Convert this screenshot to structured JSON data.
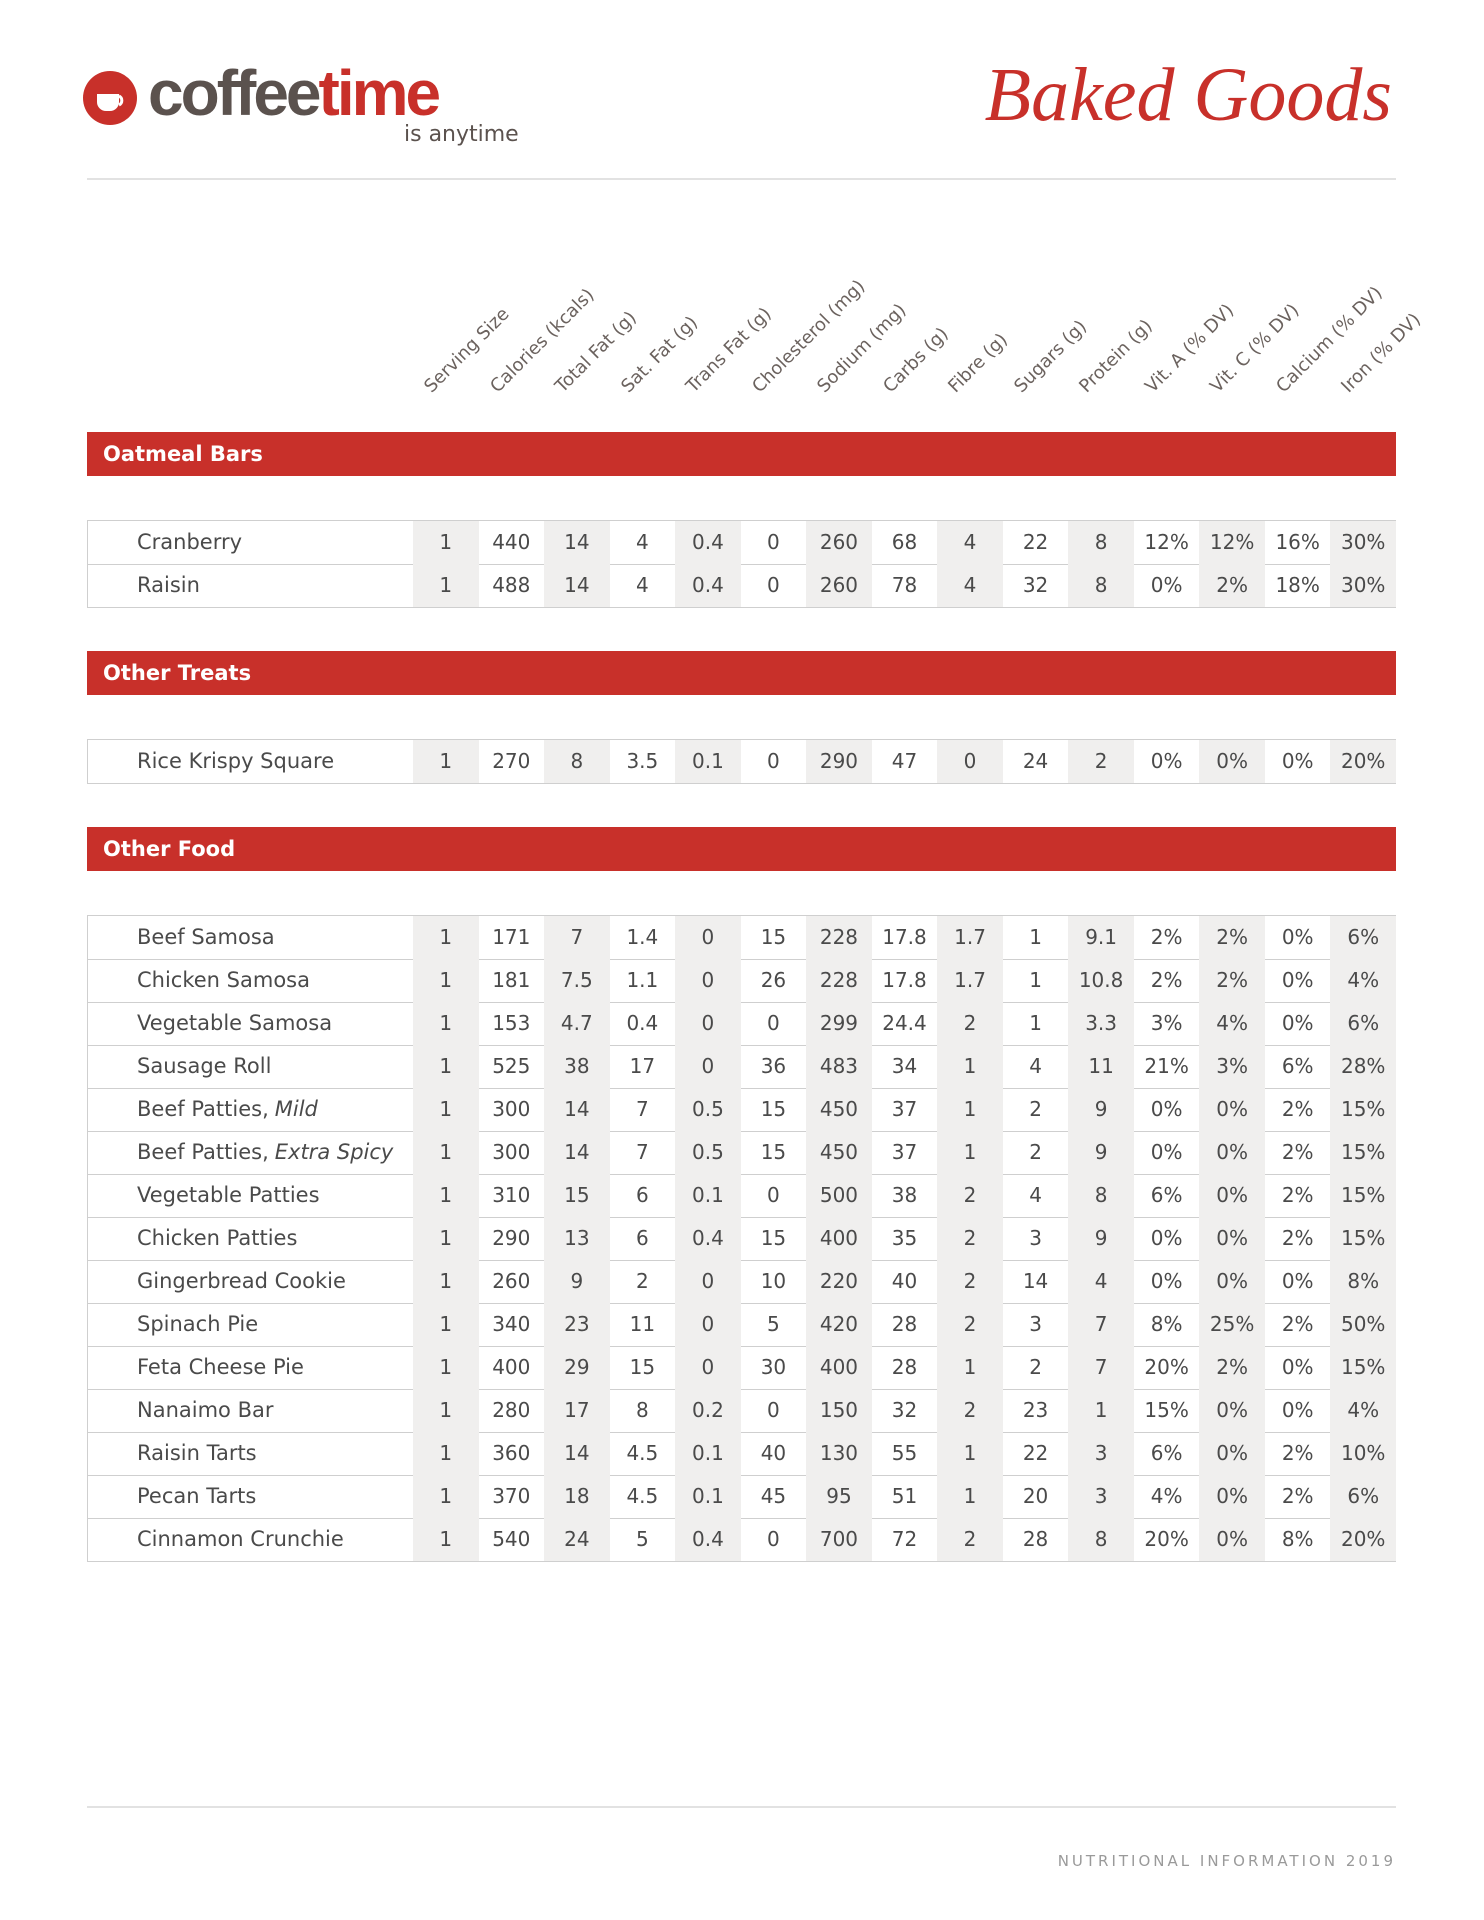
{
  "header": {
    "brand": "coffee",
    "brand_accent": "time",
    "tagline": "is anytime",
    "title": "Baked Goods"
  },
  "columns": [
    "Serving Size",
    "Calories (kcals)",
    "Total Fat (g)",
    "Sat. Fat (g)",
    "Trans Fat (g)",
    "Cholesterol (mg)",
    "Sodium (mg)",
    "Carbs (g)",
    "Fibre (g)",
    "Sugars (g)",
    "Protein (g)",
    "Vit. A (% DV)",
    "Vit. C (% DV)",
    "Calcium (% DV)",
    "Iron (% DV)"
  ],
  "sections": [
    {
      "title": "Oatmeal Bars",
      "rows": [
        {
          "name": "Cranberry",
          "values": [
            1,
            440,
            14,
            4,
            0.4,
            0,
            260,
            68,
            4,
            22,
            8,
            "12%",
            "12%",
            "16%",
            "30%"
          ]
        },
        {
          "name": "Raisin",
          "values": [
            1,
            488,
            14,
            4,
            0.4,
            0,
            260,
            78,
            4,
            32,
            8,
            "0%",
            "2%",
            "18%",
            "30%"
          ]
        }
      ]
    },
    {
      "title": "Other Treats",
      "rows": [
        {
          "name": "Rice Krispy Square",
          "values": [
            1,
            270,
            8,
            3.5,
            0.1,
            0,
            290,
            47,
            0,
            24,
            2,
            "0%",
            "0%",
            "0%",
            "20%"
          ]
        }
      ]
    },
    {
      "title": "Other Food",
      "rows": [
        {
          "name": "Beef Samosa",
          "values": [
            1,
            171,
            7,
            1.4,
            0,
            15,
            228,
            17.8,
            1.7,
            1,
            9.1,
            "2%",
            "2%",
            "0%",
            "6%"
          ]
        },
        {
          "name": "Chicken Samosa",
          "values": [
            1,
            181,
            7.5,
            1.1,
            0,
            26,
            228,
            17.8,
            1.7,
            1,
            10.8,
            "2%",
            "2%",
            "0%",
            "4%"
          ]
        },
        {
          "name": "Vegetable Samosa",
          "values": [
            1,
            153,
            4.7,
            0.4,
            0,
            0,
            299,
            24.4,
            2,
            1,
            3.3,
            "3%",
            "4%",
            "0%",
            "6%"
          ]
        },
        {
          "name": "Sausage Roll",
          "values": [
            1,
            525,
            38,
            17,
            0,
            36,
            483,
            34,
            1,
            4,
            11,
            "21%",
            "3%",
            "6%",
            "28%"
          ]
        },
        {
          "name": "Beef Patties,",
          "variant": "Mild",
          "values": [
            1,
            300,
            14,
            7,
            0.5,
            15,
            450,
            37,
            1,
            2,
            9,
            "0%",
            "0%",
            "2%",
            "15%"
          ]
        },
        {
          "name": "Beef Patties,",
          "variant": "Extra Spicy",
          "values": [
            1,
            300,
            14,
            7,
            0.5,
            15,
            450,
            37,
            1,
            2,
            9,
            "0%",
            "0%",
            "2%",
            "15%"
          ]
        },
        {
          "name": "Vegetable Patties",
          "values": [
            1,
            310,
            15,
            6,
            0.1,
            0,
            500,
            38,
            2,
            4,
            8,
            "6%",
            "0%",
            "2%",
            "15%"
          ]
        },
        {
          "name": "Chicken Patties",
          "values": [
            1,
            290,
            13,
            6,
            0.4,
            15,
            400,
            35,
            2,
            3,
            9,
            "0%",
            "0%",
            "2%",
            "15%"
          ]
        },
        {
          "name": "Gingerbread Cookie",
          "values": [
            1,
            260,
            9,
            2,
            0,
            10,
            220,
            40,
            2,
            14,
            4,
            "0%",
            "0%",
            "0%",
            "8%"
          ]
        },
        {
          "name": "Spinach Pie",
          "values": [
            1,
            340,
            23,
            11,
            0,
            5,
            420,
            28,
            2,
            3,
            7,
            "8%",
            "25%",
            "2%",
            "50%"
          ]
        },
        {
          "name": "Feta Cheese Pie",
          "values": [
            1,
            400,
            29,
            15,
            0,
            30,
            400,
            28,
            1,
            2,
            7,
            "20%",
            "2%",
            "0%",
            "15%"
          ]
        },
        {
          "name": "Nanaimo Bar",
          "values": [
            1,
            280,
            17,
            8,
            0.2,
            0,
            150,
            32,
            2,
            23,
            1,
            "15%",
            "0%",
            "0%",
            "4%"
          ]
        },
        {
          "name": "Raisin Tarts",
          "values": [
            1,
            360,
            14,
            4.5,
            0.1,
            40,
            130,
            55,
            1,
            22,
            3,
            "6%",
            "0%",
            "2%",
            "10%"
          ]
        },
        {
          "name": "Pecan Tarts",
          "values": [
            1,
            370,
            18,
            4.5,
            0.1,
            45,
            95,
            51,
            1,
            20,
            3,
            "4%",
            "0%",
            "2%",
            "6%"
          ]
        },
        {
          "name": "Cinnamon Crunchie",
          "values": [
            1,
            540,
            24,
            5,
            0.4,
            0,
            700,
            72,
            2,
            28,
            8,
            "20%",
            "0%",
            "8%",
            "20%"
          ]
        }
      ]
    }
  ],
  "footer": "NUTRITIONAL INFORMATION 2019"
}
